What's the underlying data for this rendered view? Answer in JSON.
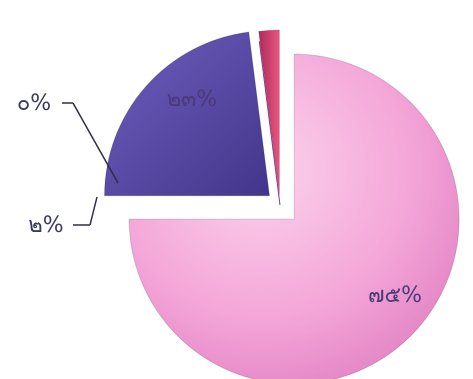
{
  "chart_data": {
    "type": "pie",
    "title": "",
    "exploded": true,
    "slices": [
      {
        "label": "๗๕%",
        "value": 75,
        "color": "#f4a6d8"
      },
      {
        "label": "๒๓%",
        "value": 23,
        "color": "#5b4aa6"
      },
      {
        "label": "๐%",
        "value": 0,
        "color": "#8a3a9e"
      },
      {
        "label": "๒%",
        "value": 2,
        "color": "#d84a78"
      }
    ]
  }
}
